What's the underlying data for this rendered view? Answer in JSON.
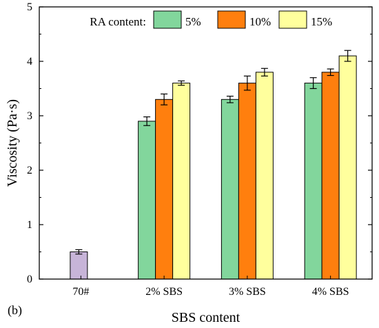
{
  "panel_label": "(b)",
  "colors": {
    "baseline": "#c7b4d8",
    "series": [
      "#82d69c",
      "#ff7f0e",
      "#ffff9d"
    ]
  },
  "chart_data": {
    "type": "bar",
    "xlabel": "SBS content",
    "ylabel": "Viscosity (Pa·s)",
    "ylim": [
      0,
      5
    ],
    "yticks": [
      0,
      1,
      2,
      3,
      4,
      5
    ],
    "categories": [
      "70#",
      "2% SBS",
      "3% SBS",
      "4% SBS"
    ],
    "baseline": {
      "category": "70#",
      "value": 0.5,
      "error": 0.04
    },
    "legend": {
      "title": "RA content:",
      "position": "top"
    },
    "series": [
      {
        "name": "5%",
        "values": [
          null,
          2.9,
          3.3,
          3.6
        ],
        "errors": [
          null,
          0.08,
          0.06,
          0.1
        ]
      },
      {
        "name": "10%",
        "values": [
          null,
          3.3,
          3.6,
          3.8
        ],
        "errors": [
          null,
          0.1,
          0.13,
          0.06
        ]
      },
      {
        "name": "15%",
        "values": [
          null,
          3.6,
          3.8,
          4.1
        ],
        "errors": [
          null,
          0.04,
          0.07,
          0.1
        ]
      }
    ],
    "grid": false
  }
}
